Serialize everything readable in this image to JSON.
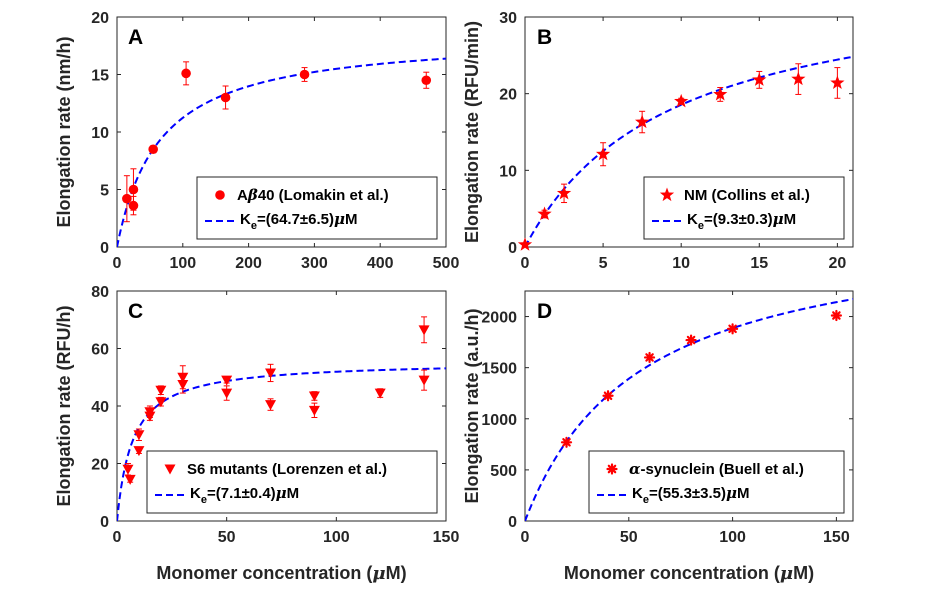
{
  "colors": {
    "marker": "#ff0000",
    "fit": "#0000ff",
    "axis": "#262626"
  },
  "chart_data": [
    {
      "panel": "A",
      "type": "scatter",
      "marker": "circle",
      "xlabel": "",
      "ylabel": "Elongation rate (nm/h)",
      "xlim": [
        0,
        500
      ],
      "ylim": [
        0,
        20
      ],
      "xticks": [
        0,
        100,
        200,
        300,
        400,
        500
      ],
      "yticks": [
        0,
        5,
        10,
        15,
        20
      ],
      "xticklabels": [
        "0",
        "100",
        "200",
        "300",
        "400",
        "500"
      ],
      "yticklabels": [
        "0",
        "5",
        "10",
        "15",
        "20"
      ],
      "points": [
        {
          "x": 15,
          "y": 4.2,
          "err": 2.0
        },
        {
          "x": 25,
          "y": 3.6,
          "err": 0.8
        },
        {
          "x": 25,
          "y": 5.0,
          "err": 1.8
        },
        {
          "x": 55,
          "y": 8.5,
          "err": 0.3
        },
        {
          "x": 105,
          "y": 15.1,
          "err": 1.0
        },
        {
          "x": 165,
          "y": 13.0,
          "err": 1.0
        },
        {
          "x": 285,
          "y": 15.0,
          "err": 0.6
        },
        {
          "x": 470,
          "y": 14.5,
          "err": 0.7
        }
      ],
      "fit": {
        "model": "michaelis-menten",
        "vmax": 18.5,
        "ke": 64.7
      },
      "legend": {
        "position": "bottom-right",
        "series_pre": "A",
        "series_greek": "β",
        "series_post": "40 (Lomakin et al.)",
        "fit_pre": "K",
        "fit_sub": "e",
        "fit_post": "=(64.7±6.5)",
        "fit_greek": "μ",
        "fit_unit": "M"
      }
    },
    {
      "panel": "B",
      "type": "scatter",
      "marker": "star",
      "xlabel": "",
      "ylabel": "Elongation rate (RFU/min)",
      "xlim": [
        0,
        21
      ],
      "ylim": [
        0,
        30
      ],
      "xticks": [
        0,
        5,
        10,
        15,
        20
      ],
      "yticks": [
        0,
        10,
        20,
        30
      ],
      "xticklabels": [
        "0",
        "5",
        "10",
        "15",
        "20"
      ],
      "yticklabels": [
        "0",
        "10",
        "20",
        "30"
      ],
      "points": [
        {
          "x": 0,
          "y": 0.3,
          "err": 0.2
        },
        {
          "x": 1.25,
          "y": 4.3,
          "err": 0.5
        },
        {
          "x": 2.5,
          "y": 7.0,
          "err": 1.2
        },
        {
          "x": 5,
          "y": 12.1,
          "err": 1.5
        },
        {
          "x": 7.5,
          "y": 16.3,
          "err": 1.4
        },
        {
          "x": 10,
          "y": 19.0,
          "err": 0.4
        },
        {
          "x": 12.5,
          "y": 19.9,
          "err": 0.9
        },
        {
          "x": 15,
          "y": 21.8,
          "err": 1.1
        },
        {
          "x": 17.5,
          "y": 21.9,
          "err": 2.0
        },
        {
          "x": 20,
          "y": 21.4,
          "err": 2.0
        }
      ],
      "fit": {
        "model": "michaelis-menten",
        "vmax": 35.8,
        "ke": 9.3
      },
      "legend": {
        "position": "bottom-right",
        "series_pre": "NM (Collins et al.)",
        "series_greek": "",
        "series_post": "",
        "fit_pre": "K",
        "fit_sub": "e",
        "fit_post": "=(9.3±0.3)",
        "fit_greek": "μ",
        "fit_unit": "M"
      }
    },
    {
      "panel": "C",
      "type": "scatter",
      "marker": "triangle-down",
      "xlabel_pre": "Monomer concentration (",
      "xlabel_greek": "μ",
      "xlabel_post": "M)",
      "ylabel": "Elongation rate (RFU/h)",
      "xlim": [
        0,
        150
      ],
      "ylim": [
        0,
        80
      ],
      "xticks": [
        0,
        50,
        100,
        150
      ],
      "yticks": [
        0,
        20,
        40,
        60,
        80
      ],
      "xticklabels": [
        "0",
        "50",
        "100",
        "150"
      ],
      "yticklabels": [
        "0",
        "20",
        "40",
        "60",
        "80"
      ],
      "points": [
        {
          "x": 5,
          "y": 18,
          "err": 2
        },
        {
          "x": 6,
          "y": 14.5,
          "err": 1
        },
        {
          "x": 10,
          "y": 30,
          "err": 2
        },
        {
          "x": 10,
          "y": 24.5,
          "err": 1
        },
        {
          "x": 15,
          "y": 38,
          "err": 2
        },
        {
          "x": 15,
          "y": 36.5,
          "err": 1.5
        },
        {
          "x": 20,
          "y": 45.5,
          "err": 1.5
        },
        {
          "x": 20,
          "y": 41.5,
          "err": 1.5
        },
        {
          "x": 30,
          "y": 50,
          "err": 4
        },
        {
          "x": 30,
          "y": 47.5,
          "err": 3
        },
        {
          "x": 50,
          "y": 49,
          "err": 1
        },
        {
          "x": 50,
          "y": 44.5,
          "err": 2.5
        },
        {
          "x": 70,
          "y": 51.5,
          "err": 3
        },
        {
          "x": 70,
          "y": 40.5,
          "err": 2
        },
        {
          "x": 90,
          "y": 43.5,
          "err": 1.5
        },
        {
          "x": 90,
          "y": 38.5,
          "err": 2.5
        },
        {
          "x": 120,
          "y": 44.5,
          "err": 1.5
        },
        {
          "x": 140,
          "y": 66.5,
          "err": 4.5
        },
        {
          "x": 140,
          "y": 49,
          "err": 3.5
        }
      ],
      "fit": {
        "model": "michaelis-menten",
        "vmax": 55.6,
        "ke": 7.1
      },
      "legend": {
        "position": "bottom-right",
        "series_pre": "S6 mutants (Lorenzen et al.)",
        "series_greek": "",
        "series_post": "",
        "fit_pre": "K",
        "fit_sub": "e",
        "fit_post": "=(7.1±0.4)",
        "fit_greek": "μ",
        "fit_unit": "M"
      }
    },
    {
      "panel": "D",
      "type": "scatter",
      "marker": "asterisk",
      "xlabel_pre": "Monomer concentration (",
      "xlabel_greek": "μ",
      "xlabel_post": "M)",
      "ylabel": "Elongation rate (a.u./h)",
      "xlim": [
        0,
        158
      ],
      "ylim": [
        0,
        2250
      ],
      "xticks": [
        0,
        50,
        100,
        150
      ],
      "yticks": [
        0,
        500,
        1000,
        1500,
        2000
      ],
      "xticklabels": [
        "0",
        "50",
        "100",
        "150"
      ],
      "yticklabels": [
        "0",
        "500",
        "1000",
        "1500",
        "2000"
      ],
      "points": [
        {
          "x": 20,
          "y": 770,
          "err": 0
        },
        {
          "x": 40,
          "y": 1225,
          "err": 0
        },
        {
          "x": 60,
          "y": 1600,
          "err": 0
        },
        {
          "x": 80,
          "y": 1770,
          "err": 0
        },
        {
          "x": 100,
          "y": 1880,
          "err": 0
        },
        {
          "x": 150,
          "y": 2010,
          "err": 0
        }
      ],
      "fit": {
        "model": "michaelis-menten",
        "vmax": 2930,
        "ke": 55.3
      },
      "legend": {
        "position": "bottom-right",
        "series_pre": "",
        "series_greek": "α",
        "series_post": "-synuclein (Buell et al.)",
        "fit_pre": "K",
        "fit_sub": "e",
        "fit_post": "=(55.3±3.5)",
        "fit_greek": "μ",
        "fit_unit": "M"
      }
    }
  ]
}
